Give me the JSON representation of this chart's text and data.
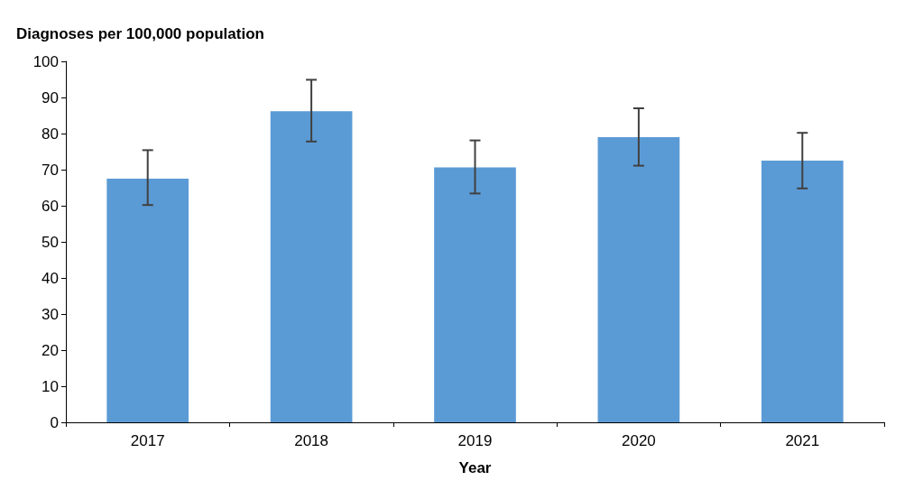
{
  "chart_data": {
    "type": "bar",
    "xlabel": "Year",
    "ylabel": "Diagnoses per 100,000 population",
    "categories": [
      "2017",
      "2018",
      "2019",
      "2020",
      "2021"
    ],
    "values": [
      67.5,
      86.2,
      70.6,
      79.0,
      72.5
    ],
    "errors": [
      [
        60.2,
        75.4
      ],
      [
        77.8,
        94.9
      ],
      [
        63.4,
        78.1
      ],
      [
        71.1,
        87.0
      ],
      [
        64.8,
        80.2
      ]
    ],
    "color": "#5b9bd5",
    "ylim": [
      0,
      100
    ],
    "yticks": [
      0,
      10,
      20,
      30,
      40,
      50,
      60,
      70,
      80,
      90,
      100
    ],
    "grid": false
  }
}
